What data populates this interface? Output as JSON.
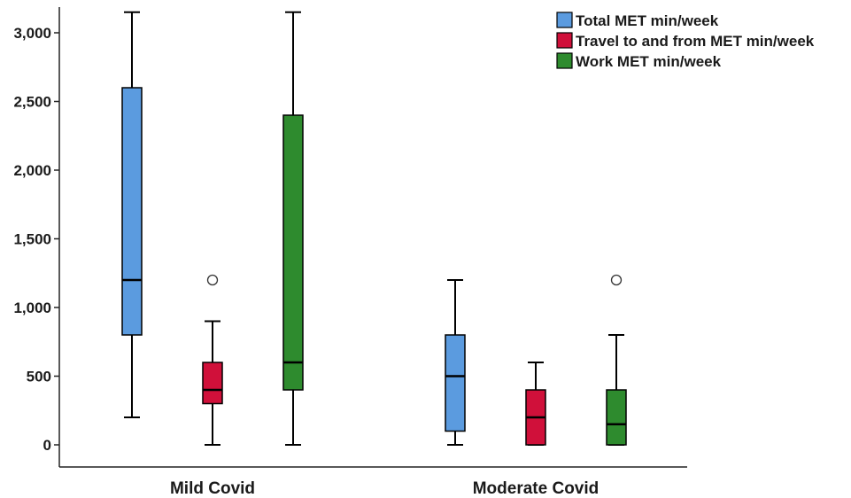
{
  "chart_data": {
    "type": "boxplot",
    "categories": [
      "Mild Covid",
      "Moderate Covid"
    ],
    "ylim": [
      -130,
      3180
    ],
    "yticks": [
      0,
      500,
      1000,
      1500,
      2000,
      2500,
      3000
    ],
    "ytick_labels": [
      "0",
      "500",
      "1,000",
      "1,500",
      "2,000",
      "2,500",
      "3,000"
    ],
    "legend_position": "top-right",
    "series": [
      {
        "name": "Total MET min/week",
        "color": "#5b9bdf",
        "boxes": [
          {
            "category": "Mild Covid",
            "whisker_low": 200,
            "q1": 800,
            "median": 1200,
            "q3": 2600,
            "whisker_high": 3150,
            "outliers": []
          },
          {
            "category": "Moderate Covid",
            "whisker_low": 0,
            "q1": 100,
            "median": 500,
            "q3": 800,
            "whisker_high": 1200,
            "outliers": []
          }
        ]
      },
      {
        "name": "Travel to and from MET min/week",
        "color": "#d0103a",
        "boxes": [
          {
            "category": "Mild Covid",
            "whisker_low": 0,
            "q1": 300,
            "median": 400,
            "q3": 600,
            "whisker_high": 900,
            "outliers": [
              1200
            ]
          },
          {
            "category": "Moderate Covid",
            "whisker_low": 0,
            "q1": 0,
            "median": 200,
            "q3": 400,
            "whisker_high": 600,
            "outliers": []
          }
        ]
      },
      {
        "name": "Work MET min/week",
        "color": "#2e8b2e",
        "boxes": [
          {
            "category": "Mild Covid",
            "whisker_low": 0,
            "q1": 400,
            "median": 600,
            "q3": 2400,
            "whisker_high": 3150,
            "outliers": []
          },
          {
            "category": "Moderate Covid",
            "whisker_low": 0,
            "q1": 0,
            "median": 150,
            "q3": 400,
            "whisker_high": 800,
            "outliers": [
              1200
            ]
          }
        ]
      }
    ]
  }
}
